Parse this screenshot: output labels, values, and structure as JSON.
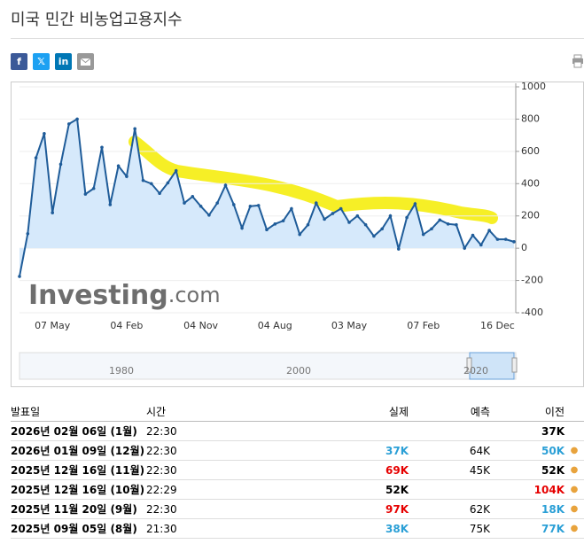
{
  "header": {
    "title": "미국 민간 비농업고용지수",
    "share": [
      "f",
      "𝕏",
      "in"
    ]
  },
  "chart_data": {
    "type": "line",
    "categories": [
      null,
      null,
      null,
      null,
      "07 May",
      null,
      null,
      null,
      null,
      null,
      null,
      null,
      null,
      "04 Feb",
      null,
      null,
      null,
      null,
      null,
      null,
      null,
      null,
      "04 Nov",
      null,
      null,
      null,
      null,
      null,
      null,
      null,
      null,
      "04 Aug",
      null,
      null,
      null,
      null,
      null,
      null,
      null,
      null,
      "03 May",
      null,
      null,
      null,
      null,
      null,
      null,
      null,
      null,
      "07 Feb",
      null,
      null,
      null,
      null,
      null,
      null,
      null,
      null,
      "16 Dec",
      null,
      null
    ],
    "series": [
      {
        "name": "실제",
        "color": "#1f5c99",
        "values": [
          -175,
          90,
          560,
          710,
          220,
          520,
          770,
          800,
          335,
          370,
          625,
          270,
          510,
          445,
          740,
          420,
          400,
          340,
          405,
          480,
          280,
          320,
          260,
          205,
          280,
          390,
          270,
          125,
          260,
          265,
          115,
          150,
          170,
          245,
          85,
          145,
          280,
          180,
          215,
          245,
          160,
          200,
          145,
          75,
          120,
          200,
          -5,
          190,
          275,
          85,
          120,
          175,
          150,
          145,
          0,
          80,
          20,
          110,
          55,
          55,
          40
        ]
      }
    ],
    "ylim": [
      -400,
      1000
    ],
    "yticks": [
      1000,
      800,
      600,
      400,
      200,
      0,
      -200,
      -400
    ],
    "grid": true,
    "area_color": "#d6e9fb",
    "watermark": {
      "brand": "Investing",
      "suffix": ".com"
    }
  },
  "navigator": {
    "labels": [
      "1980",
      "2000",
      "2020"
    ]
  },
  "table": {
    "headers": [
      "발표일",
      "시간",
      "실제",
      "예측",
      "이전"
    ],
    "rows": [
      {
        "date": "2026년 02월 06일 (1월)",
        "time": "22:30",
        "actual": null,
        "forecast": null,
        "previous": "37K",
        "actual_color": null,
        "previous_color": "#000000",
        "dot": false
      },
      {
        "date": "2026년 01월 09일 (12월)",
        "time": "22:30",
        "actual": "37K",
        "forecast": "64K",
        "previous": "50K",
        "actual_color": "#2a9fd6",
        "previous_color": "#2a9fd6",
        "dot": true
      },
      {
        "date": "2025년 12월 16일 (11월)",
        "time": "22:30",
        "actual": "69K",
        "forecast": "45K",
        "previous": "52K",
        "actual_color": "#e60000",
        "previous_color": "#000000",
        "dot": true
      },
      {
        "date": "2025년 12월 16일 (10월)",
        "time": "22:29",
        "actual": "52K",
        "forecast": null,
        "previous": "104K",
        "actual_color": "#000000",
        "previous_color": "#e60000",
        "dot": true
      },
      {
        "date": "2025년 11월 20일 (9월)",
        "time": "22:30",
        "actual": "97K",
        "forecast": "62K",
        "previous": "18K",
        "actual_color": "#e60000",
        "previous_color": "#2a9fd6",
        "dot": true
      },
      {
        "date": "2025년 09월 05일 (8월)",
        "time": "21:30",
        "actual": "38K",
        "forecast": "75K",
        "previous": "77K",
        "actual_color": "#2a9fd6",
        "previous_color": "#2a9fd6",
        "dot": true
      }
    ]
  }
}
